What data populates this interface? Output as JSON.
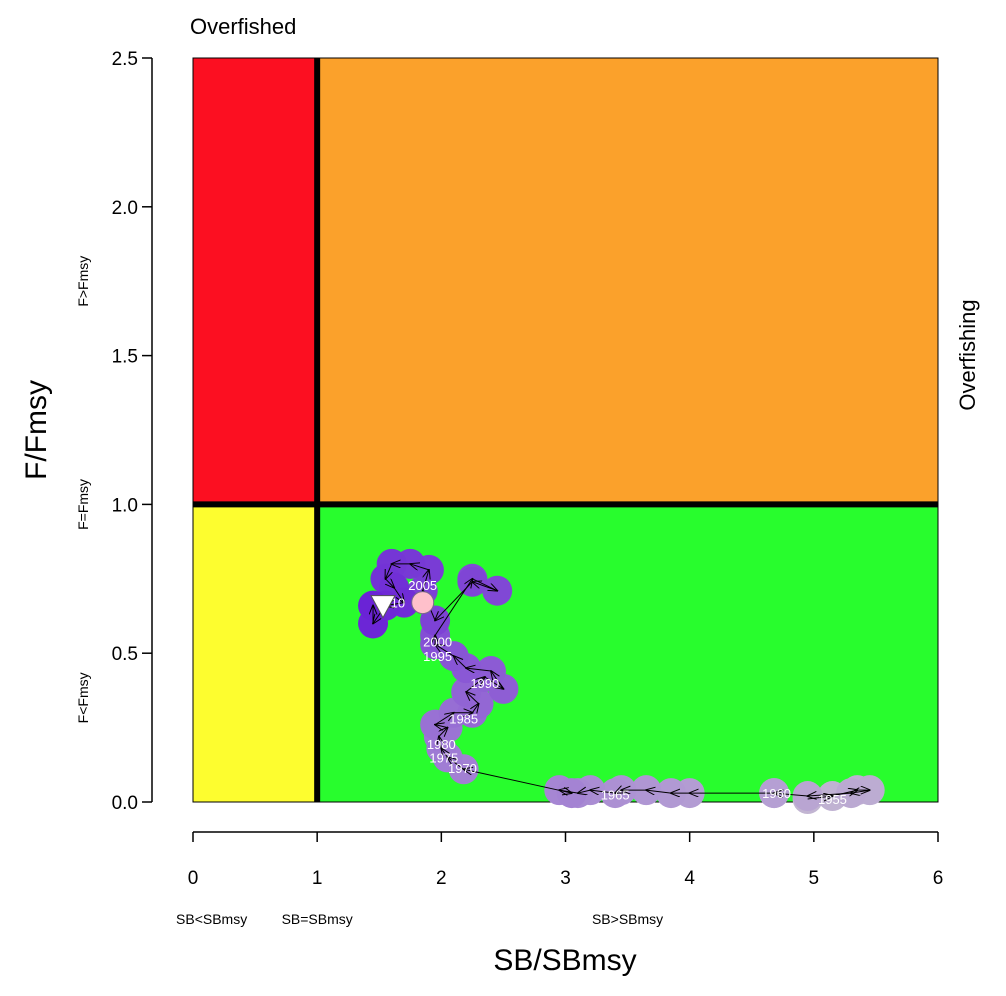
{
  "chart_data": {
    "type": "scatter",
    "title": "Overfished",
    "right_title": "Overfishing",
    "xlabel": "SB/SBmsy",
    "ylabel": "F/Fmsy",
    "xlim": [
      0,
      6
    ],
    "ylim": [
      0,
      2.5
    ],
    "x_ticks": [
      "0",
      "1",
      "2",
      "3",
      "4",
      "5",
      "6"
    ],
    "y_ticks": [
      "0.0",
      "0.5",
      "1.0",
      "1.5",
      "2.0",
      "2.5"
    ],
    "reference_lines": {
      "x": 1,
      "y": 1
    },
    "x_zone_labels": [
      {
        "text": "SB<SBmsy",
        "x": 0.15
      },
      {
        "text": "SB=SBmsy",
        "x": 1.0
      },
      {
        "text": "SB>SBmsy",
        "x": 3.5
      }
    ],
    "y_zone_labels": [
      {
        "text": "F>Fmsy",
        "y": 1.75
      },
      {
        "text": "F=Fmsy",
        "y": 1.0
      },
      {
        "text": "F<Fmsy",
        "y": 0.35
      }
    ],
    "zones": [
      {
        "name": "red",
        "x": [
          0,
          1
        ],
        "y": [
          1,
          2.5
        ],
        "color": "#fc0f21"
      },
      {
        "name": "orange",
        "x": [
          1,
          6
        ],
        "y": [
          1,
          2.5
        ],
        "color": "#fba12b"
      },
      {
        "name": "yellow",
        "x": [
          0,
          1
        ],
        "y": [
          0,
          1
        ],
        "color": "#fdfd2f"
      },
      {
        "name": "green",
        "x": [
          1,
          6
        ],
        "y": [
          0,
          1
        ],
        "color": "#28fd2d"
      }
    ],
    "colors": {
      "early": "#c2b5d2",
      "late": "#6a23d6",
      "start_marker": "#ffc0cb",
      "end_marker": "#ffffff"
    },
    "points": [
      [
        4.95,
        0.01
      ],
      [
        5.15,
        0.02
      ],
      [
        5.35,
        0.04
      ],
      [
        5.45,
        0.04
      ],
      [
        5.3,
        0.03
      ],
      [
        4.95,
        0.02
      ],
      [
        4.68,
        0.03
      ],
      [
        4.68,
        0.03
      ],
      [
        4.0,
        0.03
      ],
      [
        3.85,
        0.03
      ],
      [
        3.65,
        0.04
      ],
      [
        3.45,
        0.04
      ],
      [
        3.4,
        0.03
      ],
      [
        3.2,
        0.04
      ],
      [
        3.1,
        0.03
      ],
      [
        2.95,
        0.04
      ],
      [
        3.05,
        0.03
      ],
      [
        2.18,
        0.11
      ],
      [
        2.05,
        0.15
      ],
      [
        2.0,
        0.18
      ],
      [
        1.98,
        0.22
      ],
      [
        2.05,
        0.25
      ],
      [
        1.95,
        0.26
      ],
      [
        2.1,
        0.3
      ],
      [
        2.25,
        0.3
      ],
      [
        2.3,
        0.33
      ],
      [
        2.2,
        0.37
      ],
      [
        2.35,
        0.42
      ],
      [
        2.5,
        0.38
      ],
      [
        2.4,
        0.44
      ],
      [
        2.2,
        0.45
      ],
      [
        2.1,
        0.49
      ],
      [
        1.95,
        0.53
      ],
      [
        1.95,
        0.56
      ],
      [
        2.25,
        0.75
      ],
      [
        2.45,
        0.71
      ],
      [
        2.25,
        0.74
      ],
      [
        1.95,
        0.61
      ],
      [
        1.85,
        0.71
      ],
      [
        1.9,
        0.78
      ],
      [
        1.75,
        0.8
      ],
      [
        1.6,
        0.8
      ],
      [
        1.55,
        0.75
      ],
      [
        1.62,
        0.72
      ],
      [
        1.7,
        0.67
      ],
      [
        1.55,
        0.66
      ],
      [
        1.45,
        0.6
      ],
      [
        1.45,
        0.66
      ]
    ],
    "year_labels": [
      {
        "text": "1955",
        "x": 5.15,
        "y": 0.01
      },
      {
        "text": "1960",
        "x": 4.7,
        "y": 0.03
      },
      {
        "text": "1965",
        "x": 3.4,
        "y": 0.025
      },
      {
        "text": "1970",
        "x": 2.17,
        "y": 0.115
      },
      {
        "text": "1975",
        "x": 2.02,
        "y": 0.15
      },
      {
        "text": "1980",
        "x": 2.0,
        "y": 0.195
      },
      {
        "text": "1985",
        "x": 2.18,
        "y": 0.28
      },
      {
        "text": "1990",
        "x": 2.35,
        "y": 0.4
      },
      {
        "text": "1995",
        "x": 1.97,
        "y": 0.49
      },
      {
        "text": "2000",
        "x": 1.97,
        "y": 0.54
      },
      {
        "text": "2005",
        "x": 1.85,
        "y": 0.73
      },
      {
        "text": "10",
        "x": 1.65,
        "y": 0.67
      }
    ],
    "start_marker": {
      "shape": "circle",
      "x": 1.85,
      "y": 0.67
    },
    "end_marker": {
      "shape": "triangle-down",
      "x": 1.53,
      "y": 0.66
    }
  }
}
